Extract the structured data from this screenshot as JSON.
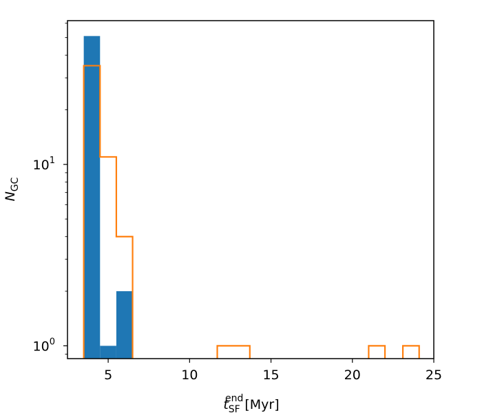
{
  "chart_data": {
    "type": "bar",
    "xlim": [
      2.5,
      25
    ],
    "ylim": [
      0.85,
      62
    ],
    "yscale": "log",
    "grid": false,
    "legend": "none",
    "xticks": [
      5,
      10,
      15,
      20,
      25
    ],
    "xtick_labels": [
      "5",
      "10",
      "15",
      "20",
      "25"
    ],
    "ytick_major": [
      1,
      10
    ],
    "ytick_labels": [
      {
        "base": "10",
        "exp": "0"
      },
      {
        "base": "10",
        "exp": "1"
      }
    ],
    "xlabel": {
      "main": "t",
      "sub": "SF",
      "sup": "end",
      "unit": "[Myr]"
    },
    "ylabel": {
      "main": "N",
      "sub": "GC"
    },
    "series": [
      {
        "style": "filled",
        "color": "#1f77b4",
        "bins": [
          {
            "x0": 3.5,
            "x1": 4.5,
            "count": 51
          },
          {
            "x0": 4.5,
            "x1": 5.5,
            "count": 1
          },
          {
            "x0": 5.5,
            "x1": 6.5,
            "count": 2
          }
        ]
      },
      {
        "style": "step",
        "color": "#ff7f0e",
        "bins": [
          {
            "x0": 3.5,
            "x1": 4.5,
            "count": 35
          },
          {
            "x0": 4.5,
            "x1": 5.5,
            "count": 11
          },
          {
            "x0": 5.5,
            "x1": 6.5,
            "count": 4
          },
          {
            "x0": 11.7,
            "x1": 13.7,
            "count": 1
          },
          {
            "x0": 21.0,
            "x1": 22.0,
            "count": 1
          },
          {
            "x0": 23.1,
            "x1": 24.1,
            "count": 1
          }
        ]
      }
    ]
  }
}
